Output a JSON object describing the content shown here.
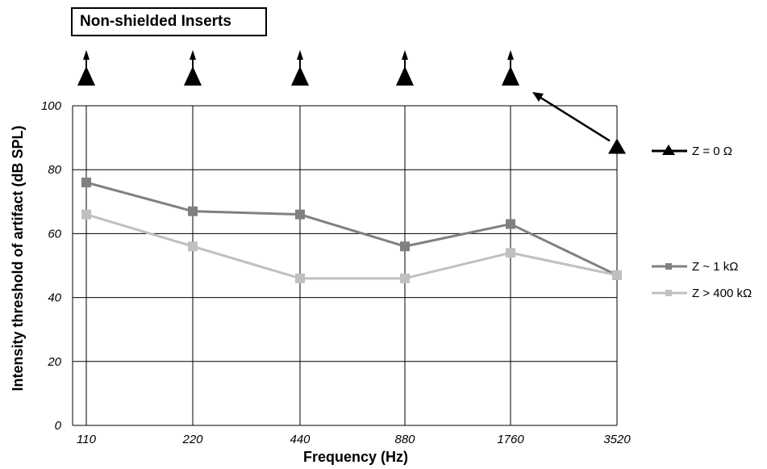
{
  "chart_data": {
    "type": "line",
    "title": "Non-shielded Inserts",
    "xlabel": "Frequency (Hz)",
    "ylabel": "Intensity threshold of artifact (dB SPL)",
    "categories": [
      "110",
      "220",
      "440",
      "880",
      "1760",
      "3520"
    ],
    "ylim": [
      0,
      100
    ],
    "yticks": [
      "0",
      "20",
      "40",
      "60",
      "80",
      "100"
    ],
    "grid": true,
    "legend_position": "right",
    "series": [
      {
        "name": "Z = 0 Ω",
        "color": "#000000",
        "marker": "triangle",
        "values": [
          null,
          null,
          null,
          null,
          null,
          87
        ],
        "above_range_at": [
          "110",
          "220",
          "440",
          "880",
          "1760"
        ]
      },
      {
        "name": "Z ~ 1 kΩ",
        "color": "#808080",
        "marker": "square",
        "values": [
          76,
          67,
          66,
          56,
          63,
          47
        ]
      },
      {
        "name": "Z > 400 kΩ",
        "color": "#c0c0c0",
        "marker": "square",
        "values": [
          66,
          56,
          46,
          46,
          54,
          47
        ]
      }
    ]
  }
}
